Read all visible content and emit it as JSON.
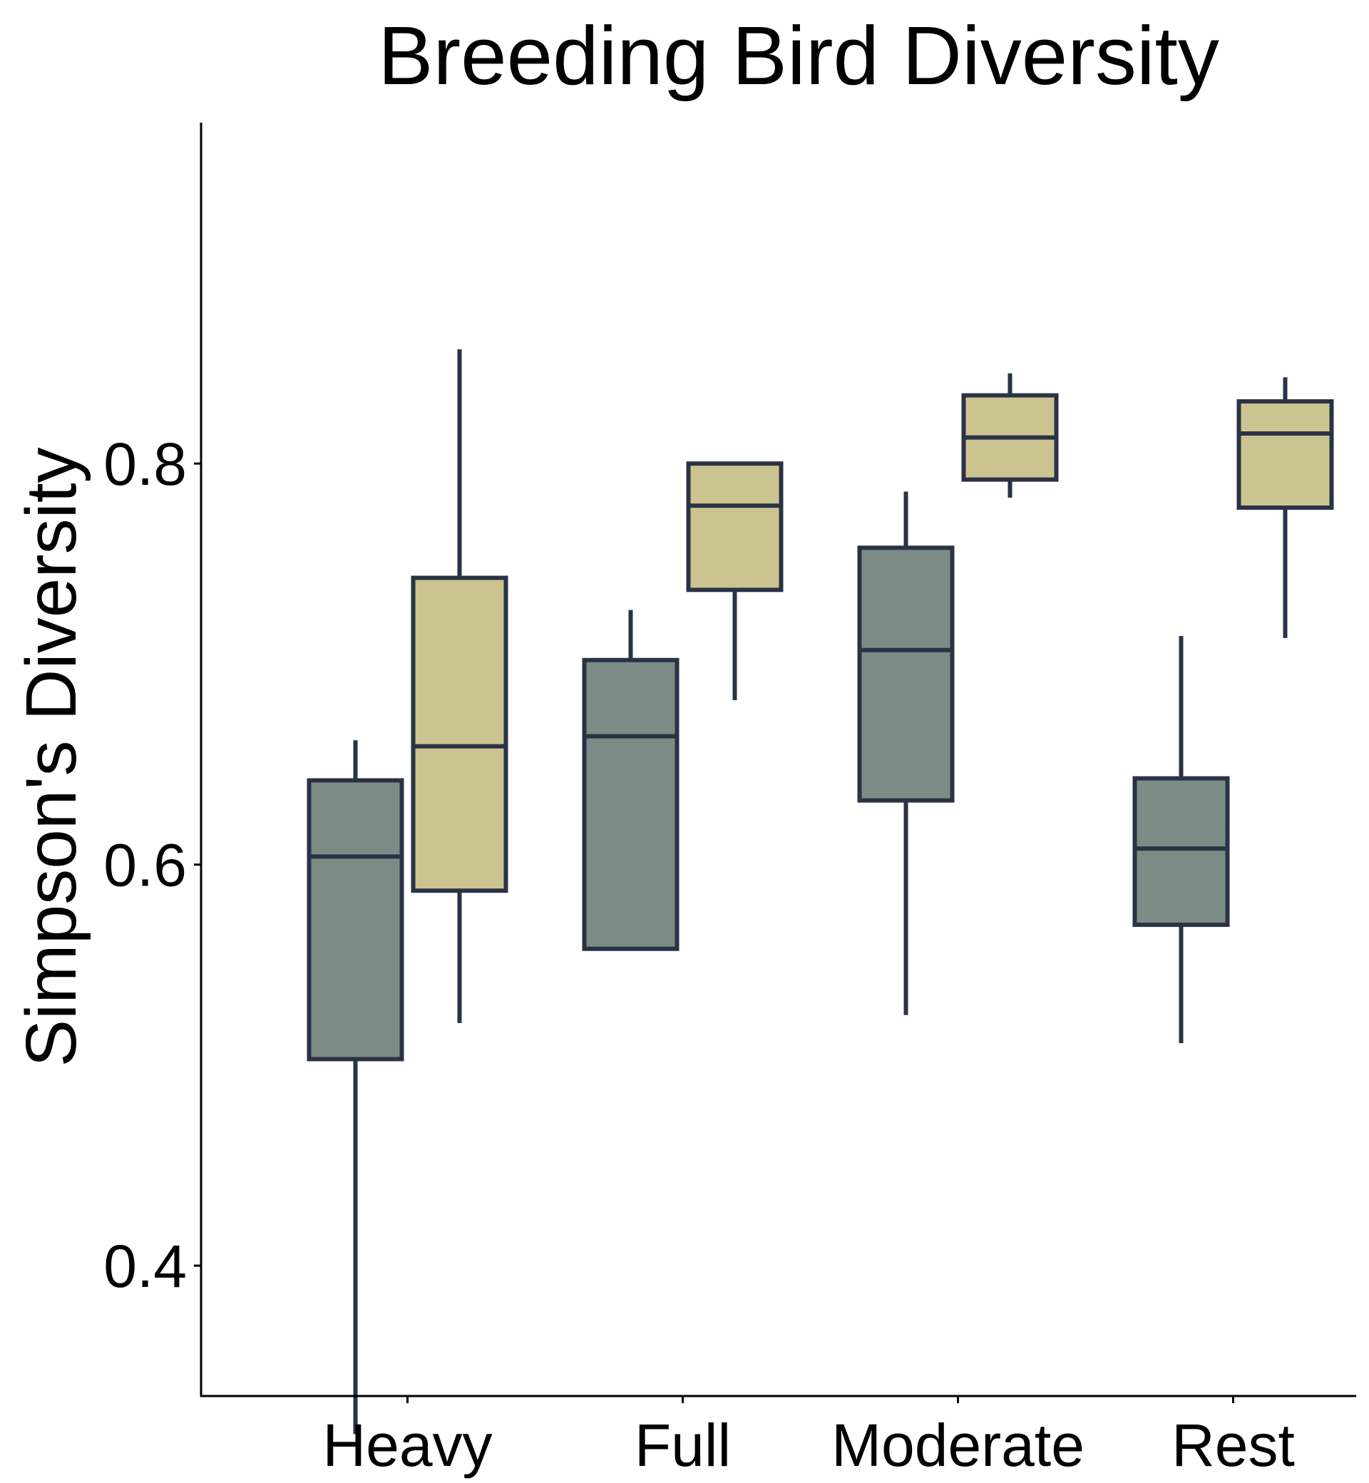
{
  "chart_data": {
    "type": "boxplot",
    "title": "Breeding Bird Diversity",
    "xlabel": "",
    "ylabel": "Simpson's Diversity",
    "ylim": [
      0.335,
      0.97
    ],
    "yticks": [
      0.4,
      0.6,
      0.8
    ],
    "ytick_labels": [
      "0.4",
      "0.6",
      "0.8"
    ],
    "categories": [
      "Heavy",
      "Full",
      "Moderate",
      "Rest"
    ],
    "grid": false,
    "legend": "none",
    "colors": {
      "series_1": "#7b8c86",
      "series_2": "#ccc490",
      "outline": "#2b3245",
      "axis": "#000000"
    },
    "series": [
      {
        "boxes": [
          {
            "category": "Heavy",
            "min": 0.316,
            "q1": 0.503,
            "median": 0.604,
            "q3": 0.642,
            "max": 0.662
          },
          {
            "category": "Full",
            "min": null,
            "q1": 0.558,
            "median": 0.664,
            "q3": 0.702,
            "max": 0.727
          },
          {
            "category": "Moderate",
            "min": 0.525,
            "q1": 0.632,
            "median": 0.707,
            "q3": 0.758,
            "max": 0.786
          },
          {
            "category": "Rest",
            "min": 0.511,
            "q1": 0.57,
            "median": 0.608,
            "q3": 0.643,
            "max": 0.714
          }
        ]
      },
      {
        "boxes": [
          {
            "category": "Heavy",
            "min": 0.521,
            "q1": 0.587,
            "median": 0.659,
            "q3": 0.743,
            "max": 0.857
          },
          {
            "category": "Full",
            "min": 0.682,
            "q1": 0.737,
            "median": 0.779,
            "q3": 0.8,
            "max": null
          },
          {
            "category": "Moderate",
            "min": 0.783,
            "q1": 0.792,
            "median": 0.813,
            "q3": 0.834,
            "max": 0.845
          },
          {
            "category": "Rest",
            "min": 0.713,
            "q1": 0.778,
            "median": 0.815,
            "q3": 0.831,
            "max": 0.843
          }
        ]
      }
    ]
  }
}
